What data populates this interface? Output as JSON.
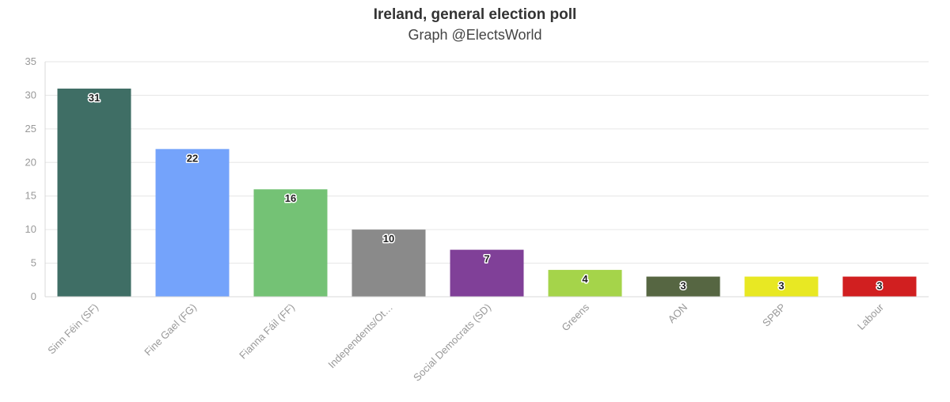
{
  "header": {
    "title": "Ireland, general election poll",
    "subtitle": "Graph @ElectsWorld"
  },
  "chart_data": {
    "type": "bar",
    "title": "Ireland, general election poll",
    "subtitle": "Graph @ElectsWorld",
    "xlabel": "",
    "ylabel": "",
    "ylim": [
      0,
      35
    ],
    "yticks": [
      0,
      5,
      10,
      15,
      20,
      25,
      30,
      35
    ],
    "grid": true,
    "legend": "none",
    "categories": [
      "Sinn Féin (SF)",
      "Fine Gael (FG)",
      "Fianna Fáil (FF)",
      "Independents/Ot…",
      "Social Democrats (SD)",
      "Greens",
      "AON",
      "SPBP",
      "Labour"
    ],
    "values": [
      31,
      22,
      16,
      10,
      7,
      4,
      3,
      3,
      3
    ],
    "colors": [
      "#3f6e65",
      "#74a3fb",
      "#74c275",
      "#8a8a8a",
      "#804098",
      "#a5d44a",
      "#566642",
      "#e8e823",
      "#d11f20"
    ]
  }
}
